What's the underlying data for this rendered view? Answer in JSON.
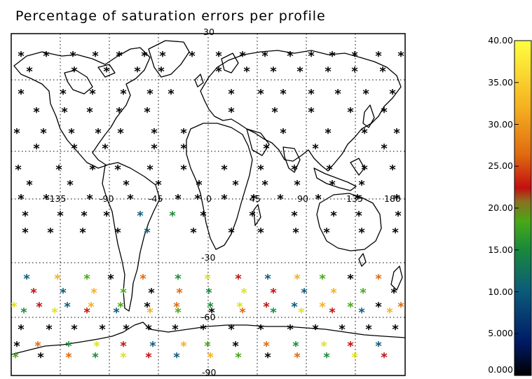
{
  "title": "Percentage of saturation errors per profile",
  "map": {
    "lat_labels": [
      "30",
      "-30",
      "-60",
      "-90"
    ],
    "lon_labels": [
      "-135",
      "-90",
      "-45",
      "0",
      "45",
      "90",
      "135",
      "180"
    ],
    "grid_lines": "dotted"
  },
  "colorbar": {
    "ticks": [
      "40.00",
      "35.00",
      "30.00",
      "25.00",
      "20.00",
      "15.00",
      "10.00",
      "5.000",
      "0.000"
    ],
    "range": [
      0,
      40
    ],
    "colors": [
      "#000000",
      "#001a66",
      "#0b5a7a",
      "#1a8a3a",
      "#48a818",
      "#8a7020",
      "#c21010",
      "#e06a10",
      "#f5b020",
      "#ffff40"
    ]
  },
  "profiles_marker": "*"
}
